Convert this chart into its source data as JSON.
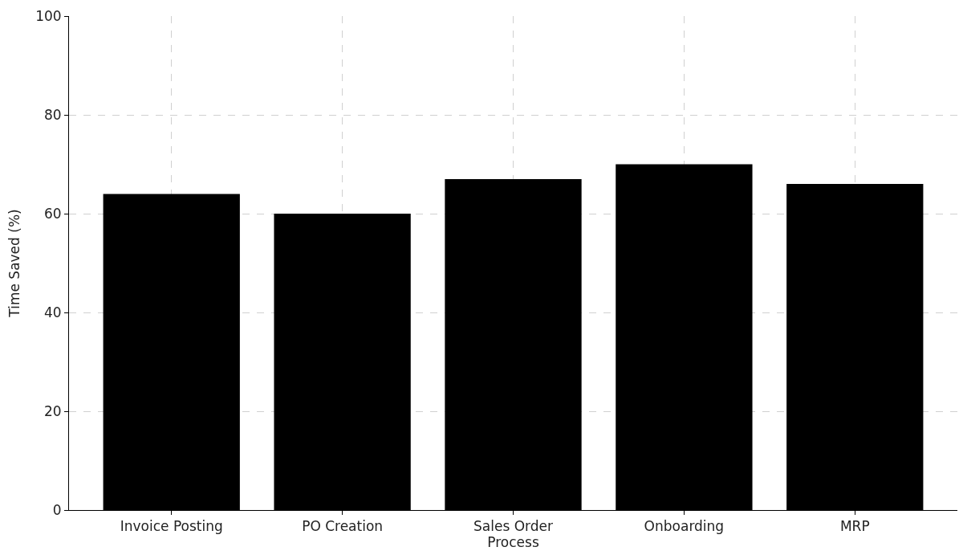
{
  "chart_data": {
    "type": "bar",
    "xlabel": "Process",
    "ylabel": "Time Saved (%)",
    "categories": [
      "Invoice Posting",
      "PO Creation",
      "Sales Order",
      "Onboarding",
      "MRP"
    ],
    "values": [
      64,
      60,
      67,
      70,
      66
    ],
    "color": "#000000",
    "ylim": [
      0,
      100
    ],
    "yticks": [
      0,
      20,
      40,
      60,
      80,
      100
    ],
    "grid": true
  }
}
